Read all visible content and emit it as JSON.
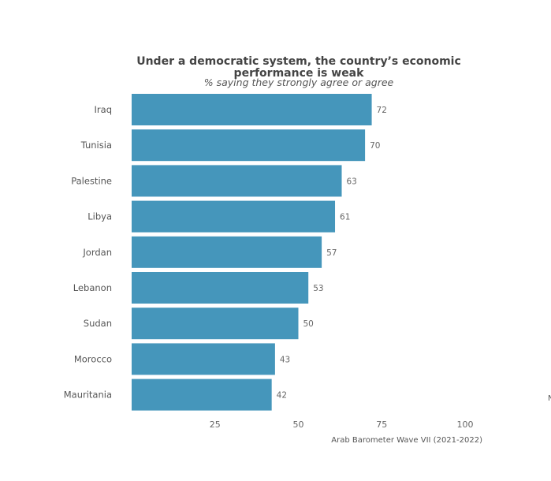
{
  "chart_data": {
    "type": "bar",
    "orientation": "horizontal",
    "title_line1": "Under a democratic system, the country’s economic",
    "title_line2": "performance is weak",
    "subtitle": "% saying they strongly agree or agree",
    "categories": [
      "Iraq",
      "Tunisia",
      "Palestine",
      "Libya",
      "Jordan",
      "Lebanon",
      "Sudan",
      "Morocco",
      "Mauritania"
    ],
    "values": [
      72,
      70,
      63,
      61,
      57,
      53,
      50,
      43,
      42
    ],
    "value_labels": [
      "72",
      "70",
      "63",
      "61",
      "57",
      "53",
      "50",
      "43",
      "42"
    ],
    "xlim": [
      0,
      100
    ],
    "x_ticks": [
      25,
      50,
      75,
      100
    ],
    "x_tick_labels": [
      "25",
      "50",
      "75",
      "100"
    ],
    "grid": false,
    "bar_color": "#4596bb",
    "source": "Arab Barometer Wave VII (2021-2022)",
    "edge_mark": "N"
  }
}
